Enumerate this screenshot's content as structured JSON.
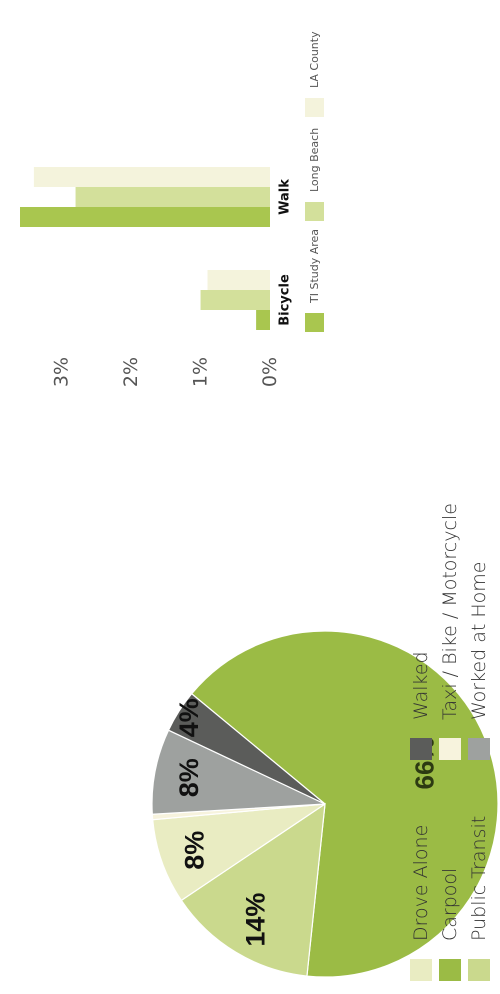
{
  "chart_data": [
    {
      "type": "pie",
      "slices": [
        {
          "label": "Carpool",
          "value": 66,
          "display": "66%",
          "color": "#9bbb45"
        },
        {
          "label": "Public Transit",
          "value": 14,
          "display": "14%",
          "color": "#cad98d"
        },
        {
          "label": "Drove Alone",
          "value": 8,
          "display": "8%",
          "color": "#e9ecc2"
        },
        {
          "label": "Taxi / Bike / Motorcycle",
          "value": 0.5,
          "display": "",
          "color": "#f7f3dd"
        },
        {
          "label": "Worked at Home",
          "value": 8,
          "display": "8%",
          "color": "#9ea19f"
        },
        {
          "label": "Walked",
          "value": 4,
          "display": "4%",
          "color": "#5b5c5a"
        }
      ],
      "legend": [
        {
          "label": "Drove Alone",
          "color": "#e9ecc2"
        },
        {
          "label": "Carpool",
          "color": "#9bbb45"
        },
        {
          "label": "Public Transit",
          "color": "#cad98d"
        },
        {
          "label": "Walked",
          "color": "#5b5c5a"
        },
        {
          "label": "Taxi / Bike / Motorcycle",
          "color": "#f7f3dd"
        },
        {
          "label": "Worked at Home",
          "color": "#9ea19f"
        }
      ]
    },
    {
      "type": "bar",
      "categories": [
        "Bicycle",
        "Walk"
      ],
      "series": [
        {
          "name": "TI Study Area",
          "values": [
            0.2,
            3.6
          ],
          "color": "#a9c64f"
        },
        {
          "name": "Long Beach",
          "values": [
            1.0,
            2.8
          ],
          "color": "#d3e09b"
        },
        {
          "name": "LA County",
          "values": [
            0.9,
            3.4
          ],
          "color": "#f4f3dc"
        }
      ],
      "ylim": [
        0,
        3.6
      ],
      "yticks": [
        {
          "value": 0,
          "label": "0%"
        },
        {
          "value": 1,
          "label": "1%"
        },
        {
          "value": 2,
          "label": "2%"
        },
        {
          "value": 3,
          "label": "3%"
        }
      ],
      "legend_position": "bottom"
    }
  ]
}
